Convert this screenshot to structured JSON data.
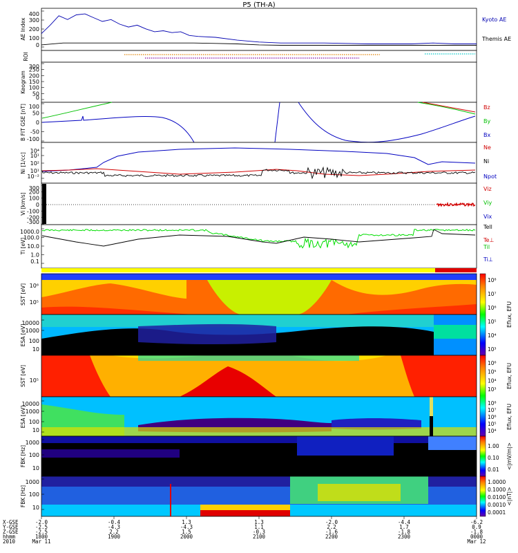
{
  "title": "P5 (TH-A)",
  "colors": {
    "kyoto": "#0000b0",
    "themis": "#000000",
    "bz": "#d00000",
    "by": "#00c000",
    "bx": "#0000c0",
    "ne": "#d00000",
    "ni": "#000000",
    "npot": "#0000c0",
    "te": "#000000",
    "ti": "#00dd00",
    "tiperp": "#0000c0",
    "roi_orange": "#e08000",
    "roi_purple": "#8000a0",
    "roi_cyan": "#00c8c8"
  },
  "chart_data": [
    {
      "type": "line",
      "panel": "ae",
      "ylabel": "AE Index",
      "ylim": [
        -50,
        400
      ],
      "yticks": [
        "400",
        "300",
        "200",
        "100",
        "0"
      ],
      "legend": [
        "Kyoto AE",
        "Themis AE"
      ],
      "series": [
        {
          "name": "Kyoto AE",
          "x": [
            0,
            0.02,
            0.04,
            0.06,
            0.08,
            0.1,
            0.12,
            0.14,
            0.16,
            0.18,
            0.2,
            0.22,
            0.24,
            0.26,
            0.28,
            0.3,
            0.32,
            0.34,
            0.36,
            0.4,
            0.45,
            0.5,
            0.55,
            0.6,
            0.65,
            0.7,
            0.75,
            0.8,
            0.85,
            0.9,
            0.95,
            1.0
          ],
          "y": [
            130,
            220,
            320,
            280,
            330,
            340,
            300,
            260,
            280,
            230,
            200,
            220,
            180,
            150,
            160,
            140,
            150,
            110,
            100,
            90,
            60,
            40,
            30,
            30,
            30,
            25,
            20,
            20,
            20,
            30,
            20,
            20
          ]
        },
        {
          "name": "Themis AE",
          "x": [
            0,
            0.05,
            0.1,
            0.15,
            0.2,
            0.25,
            0.3,
            0.35,
            0.4,
            0.45,
            0.5,
            0.55,
            0.6,
            0.65,
            0.7,
            0.75,
            0.8,
            0.85,
            0.9,
            0.95,
            1.0
          ],
          "y": [
            10,
            30,
            30,
            30,
            30,
            30,
            30,
            30,
            25,
            20,
            10,
            5,
            5,
            5,
            5,
            5,
            5,
            5,
            5,
            5,
            5
          ]
        }
      ]
    },
    {
      "type": "line",
      "panel": "roi",
      "ylabel": "ROI"
    },
    {
      "type": "line",
      "panel": "keogram",
      "ylabel": "Keogram",
      "ylim": [
        0,
        300
      ],
      "yticks": [
        "300",
        "250",
        "200",
        "150",
        "100",
        "50",
        "0"
      ]
    },
    {
      "type": "line",
      "panel": "bfield",
      "ylabel": "B FIT GSE [nT]",
      "ylim": [
        -100,
        100
      ],
      "yticks": [
        "100",
        "50",
        "0",
        "-50",
        "-100"
      ],
      "legend": [
        "Bz",
        "By",
        "Bx"
      ]
    },
    {
      "type": "line",
      "panel": "density",
      "ylabel": "Ni [1/cc]",
      "ytick_labels": [
        "10⁴",
        "10¹",
        "10²",
        "10¹",
        "10⁻²"
      ],
      "legend": [
        "Ne",
        "Ni",
        "Npot"
      ]
    },
    {
      "type": "line",
      "panel": "velocity",
      "ylabel": "Vi [km/s]",
      "ylim": [
        -300,
        300
      ],
      "yticks": [
        "300",
        "200",
        "100",
        "0",
        "-100",
        "-200",
        "-300"
      ],
      "legend": [
        "Viz",
        "Viy",
        "Vix"
      ]
    },
    {
      "type": "line",
      "panel": "temperature",
      "ylabel": "Ti [eV]",
      "yticks": [
        "1000.0",
        "100.0",
        "10.0",
        "1.0",
        "0.1"
      ],
      "legend": [
        "Tell",
        "Te⊥",
        "Til",
        "Ti⊥"
      ]
    },
    {
      "type": "heatmap",
      "panel": "sst1",
      "ylabel": "SST [eV]",
      "ytick_labels": [
        "10⁶",
        "10⁵"
      ]
    },
    {
      "type": "heatmap",
      "panel": "esa1",
      "ylabel": "ESA [eV]",
      "yticks": [
        "10000",
        "1000",
        "100",
        "10"
      ],
      "colorbar": [
        "10⁸",
        "10⁷",
        "10⁶",
        "10⁵",
        "10⁴",
        "10³"
      ],
      "colorbar_label": "Eflux, EFU"
    },
    {
      "type": "heatmap",
      "panel": "sst2",
      "ylabel": "SST [eV]",
      "ytick_labels": [
        "10⁵"
      ],
      "colorbar": [
        "10⁶",
        "10⁵",
        "10⁴",
        "10³"
      ],
      "colorbar_label": "Eflux, EFU"
    },
    {
      "type": "heatmap",
      "panel": "esa2",
      "ylabel": "ESA [eV]",
      "yticks": [
        "10000",
        "1000",
        "100",
        "10"
      ],
      "colorbar": [
        "10⁸",
        "10⁷",
        "10⁶",
        "10⁵",
        "10⁴"
      ],
      "colorbar_label": "Eflux, EFU"
    },
    {
      "type": "heatmap",
      "panel": "fbk1",
      "ylabel": "FBK [Hz]",
      "yticks": [
        "1000",
        "100",
        "10"
      ],
      "colorbar": [
        "1.00",
        "0.10",
        "0.01"
      ],
      "colorbar_label": "<|mV/m|>"
    },
    {
      "type": "heatmap",
      "panel": "fbk2",
      "ylabel": "FBK [Hz]",
      "yticks": [
        "1000",
        "100",
        "10"
      ],
      "colorbar": [
        "1.0000",
        "0.1000",
        "0.0100",
        "0.0010",
        "0.0001"
      ],
      "colorbar_label": "<|nT|>"
    }
  ],
  "bottom_axis": {
    "row_labels": [
      "X-GSE",
      "Y-GSE",
      "Z-GSE",
      "hhmm",
      "2010"
    ],
    "ticks": [
      {
        "x": "-2.0",
        "y": "-2.5",
        "z": "-2.5",
        "hhmm": "1800",
        "date": "Mar 11"
      },
      {
        "x": "-0.4",
        "y": "-4.3",
        "z": "2.2",
        "hhmm": "1900",
        "date": ""
      },
      {
        "x": "1.3",
        "y": "-4.3",
        "z": "1.5",
        "hhmm": "2000",
        "date": ""
      },
      {
        "x": "1.3",
        "y": "1.1",
        "z": "-0.3",
        "hhmm": "2100",
        "date": ""
      },
      {
        "x": "-2.0",
        "y": "2.2",
        "z": "-1.6",
        "hhmm": "2200",
        "date": ""
      },
      {
        "x": "-4.4",
        "y": "1.7",
        "z": "-1.8",
        "hhmm": "2300",
        "date": ""
      },
      {
        "x": "-6.2",
        "y": "0.9",
        "z": "-1.8",
        "hhmm": "0000",
        "date": "Mar 12"
      }
    ]
  }
}
